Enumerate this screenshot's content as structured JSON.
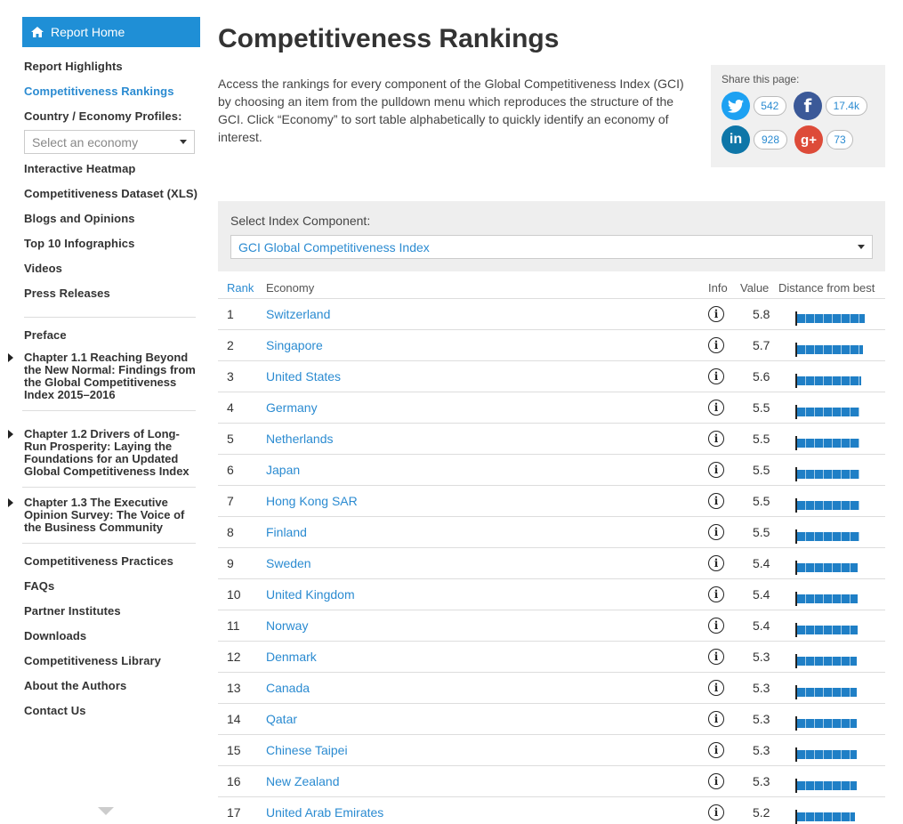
{
  "sidebar": {
    "report_home": "Report Home",
    "items_top": [
      {
        "label": "Report Highlights",
        "active": false
      },
      {
        "label": "Competitiveness Rankings",
        "active": true
      },
      {
        "label": "Country / Economy Profiles:",
        "active": false
      }
    ],
    "economy_select_placeholder": "Select an economy",
    "items_mid": [
      "Interactive Heatmap",
      "Competitiveness Dataset (XLS)",
      "Blogs and Opinions",
      "Top 10 Infographics",
      "Videos",
      "Press Releases"
    ],
    "preface": "Preface",
    "chapters": [
      "Chapter 1.1 Reaching Beyond the New Normal: Findings from the Global Competitiveness Index 2015–2016",
      "Chapter 1.2 Drivers of Long-Run Prosperity: Laying the Foundations for an Updated Global Competitiveness Index",
      "Chapter 1.3 The Executive Opinion Survey: The Voice of the Business Community"
    ],
    "items_bottom": [
      "Competitiveness Practices",
      "FAQs",
      "Partner Institutes",
      "Downloads",
      "Competitiveness Library",
      "About the Authors",
      "Contact Us"
    ]
  },
  "main": {
    "title": "Competitiveness Rankings",
    "intro": "Access the rankings for every component of the Global Competitiveness Index (GCI) by choosing an item from the pulldown menu which reproduces the structure of the GCI. Click “Economy” to sort table alphabetically to quickly identify an economy of interest.",
    "share": {
      "label": "Share this page:",
      "twitter_count": "542",
      "facebook_count": "17.4k",
      "linkedin_count": "928",
      "googleplus_count": "73",
      "twitter_color": "#1da1f2",
      "facebook_color": "#3b5998",
      "linkedin_color": "#0e76a8",
      "googleplus_color": "#dd4b39"
    },
    "component": {
      "label": "Select Index Component:",
      "selected": "GCI Global Competitiveness Index"
    },
    "table": {
      "headers": {
        "rank": "Rank",
        "economy": "Economy",
        "info": "Info",
        "value": "Value",
        "distance": "Distance from best"
      },
      "best_value": 5.8,
      "rows": [
        {
          "rank": "1",
          "economy": "Switzerland",
          "value": "5.8"
        },
        {
          "rank": "2",
          "economy": "Singapore",
          "value": "5.7"
        },
        {
          "rank": "3",
          "economy": "United States",
          "value": "5.6"
        },
        {
          "rank": "4",
          "economy": "Germany",
          "value": "5.5"
        },
        {
          "rank": "5",
          "economy": "Netherlands",
          "value": "5.5"
        },
        {
          "rank": "6",
          "economy": "Japan",
          "value": "5.5"
        },
        {
          "rank": "7",
          "economy": "Hong Kong SAR",
          "value": "5.5"
        },
        {
          "rank": "8",
          "economy": "Finland",
          "value": "5.5"
        },
        {
          "rank": "9",
          "economy": "Sweden",
          "value": "5.4"
        },
        {
          "rank": "10",
          "economy": "United Kingdom",
          "value": "5.4"
        },
        {
          "rank": "11",
          "economy": "Norway",
          "value": "5.4"
        },
        {
          "rank": "12",
          "economy": "Denmark",
          "value": "5.3"
        },
        {
          "rank": "13",
          "economy": "Canada",
          "value": "5.3"
        },
        {
          "rank": "14",
          "economy": "Qatar",
          "value": "5.3"
        },
        {
          "rank": "15",
          "economy": "Chinese Taipei",
          "value": "5.3"
        },
        {
          "rank": "16",
          "economy": "New Zealand",
          "value": "5.3"
        },
        {
          "rank": "17",
          "economy": "United Arab Emirates",
          "value": "5.2"
        }
      ]
    }
  }
}
